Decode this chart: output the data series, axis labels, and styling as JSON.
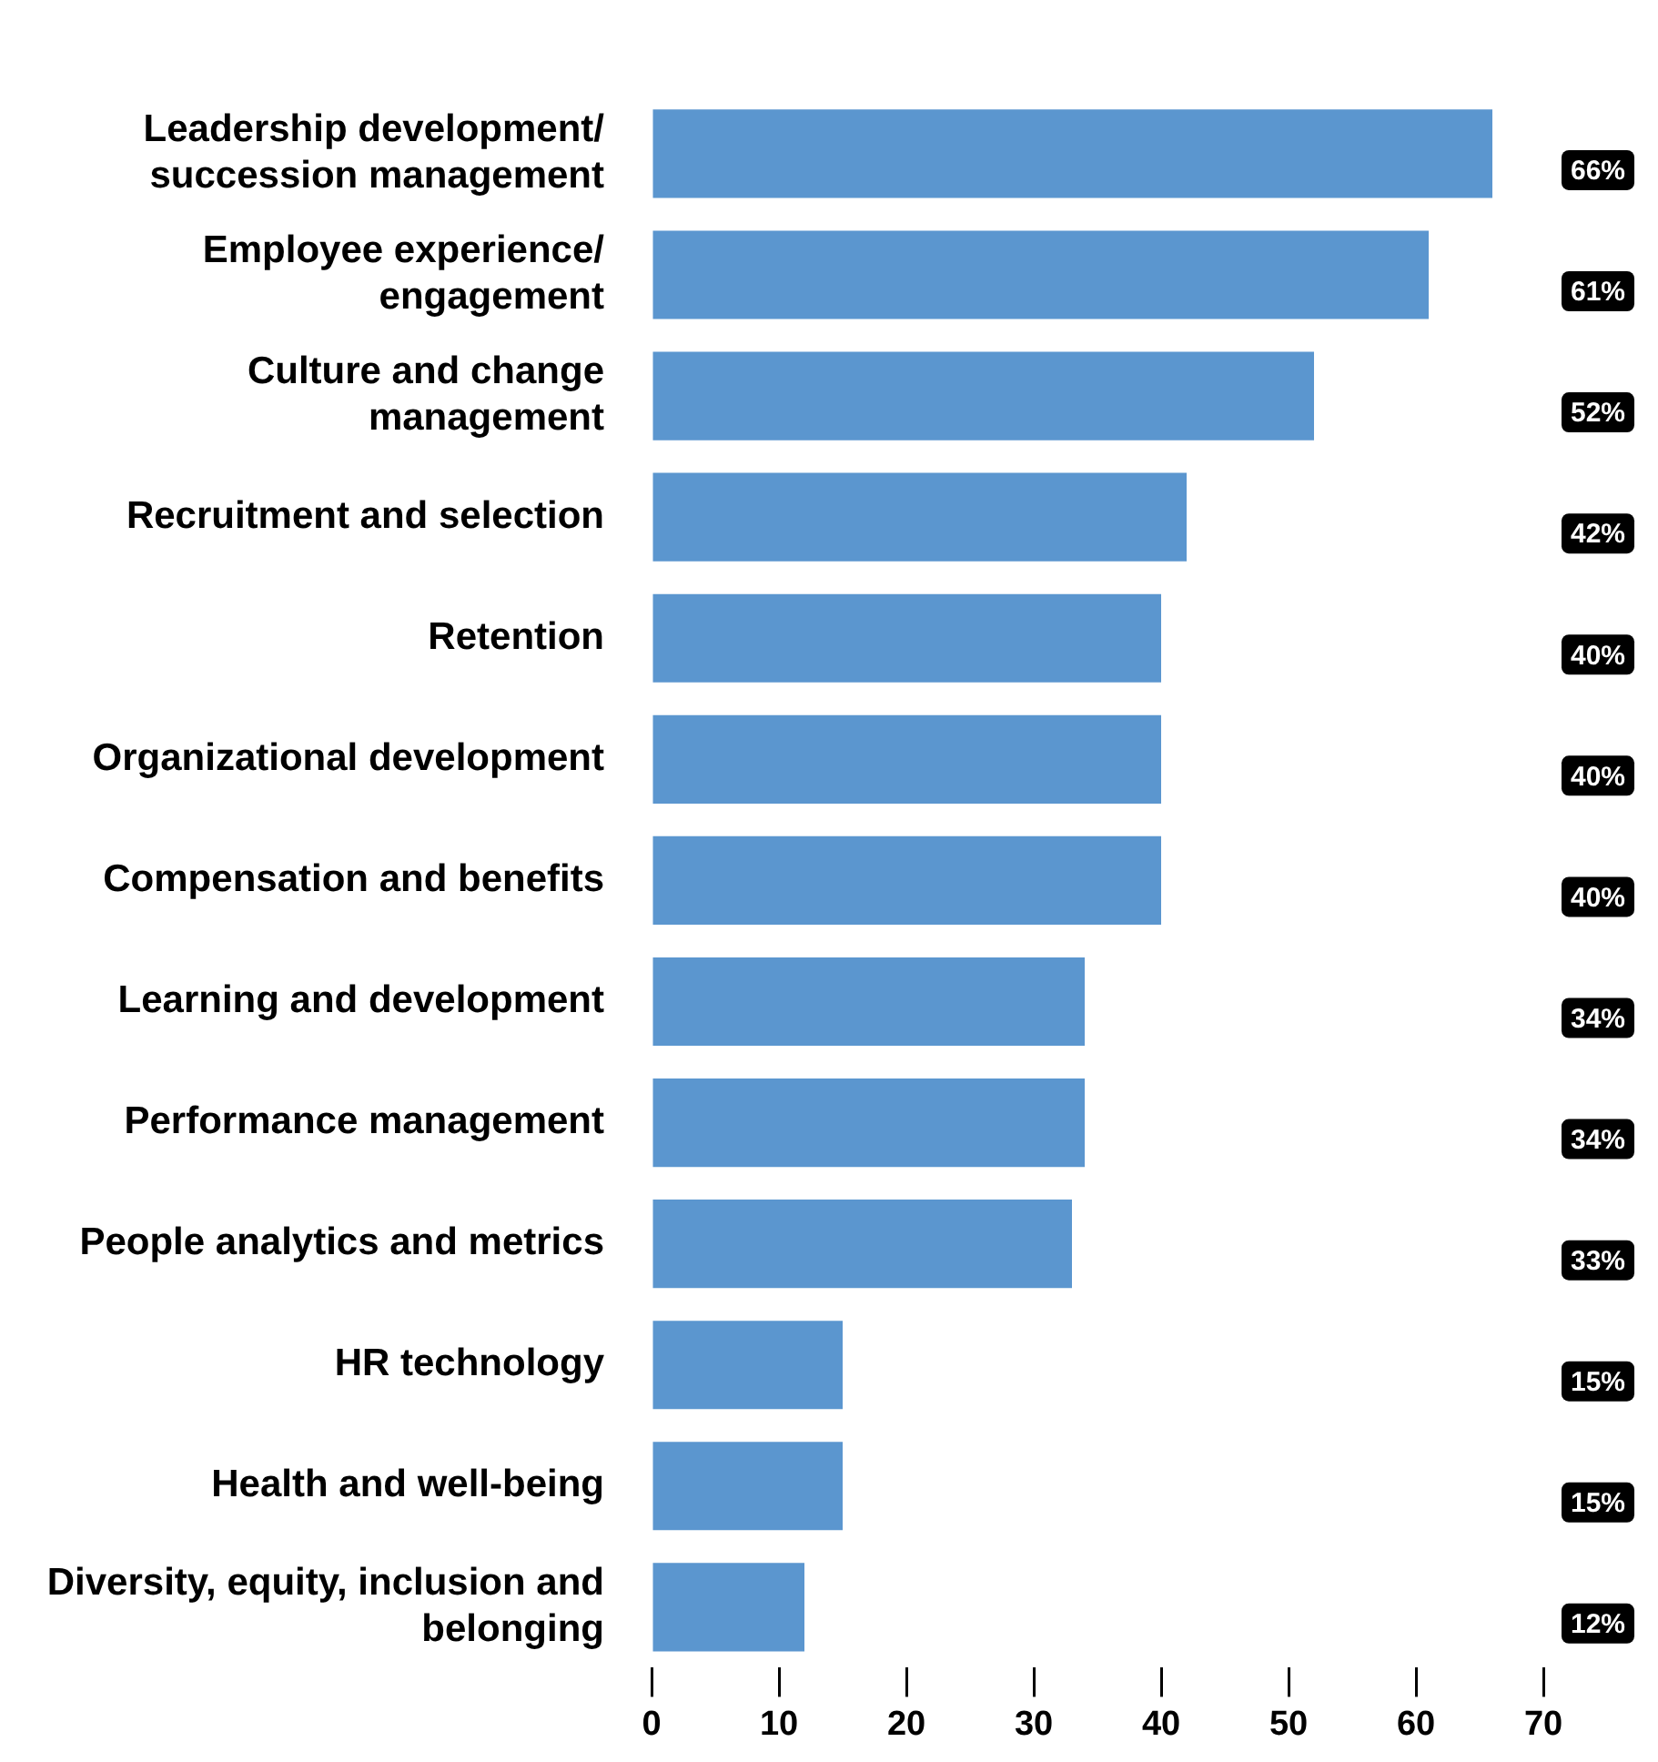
{
  "chart_data": {
    "type": "bar",
    "orientation": "horizontal",
    "categories": [
      "Leadership development/ succession management",
      "Employee experience/ engagement",
      "Culture and change management",
      "Recruitment and selection",
      "Retention",
      "Organizational development",
      "Compensation and benefits",
      "Learning and development",
      "Performance management",
      "People analytics and metrics",
      "HR technology",
      "Health and well-being",
      "Diversity, equity, inclusion and belonging"
    ],
    "values": [
      66,
      61,
      52,
      42,
      40,
      40,
      40,
      34,
      34,
      33,
      15,
      15,
      12
    ],
    "value_labels": [
      "66%",
      "61%",
      "52%",
      "42%",
      "40%",
      "40%",
      "40%",
      "34%",
      "34%",
      "33%",
      "15%",
      "15%",
      "12%"
    ],
    "color": "#5b96cf",
    "xlim": [
      0,
      70
    ],
    "xticks": [
      0,
      10,
      20,
      30,
      40,
      50,
      60,
      70
    ]
  }
}
